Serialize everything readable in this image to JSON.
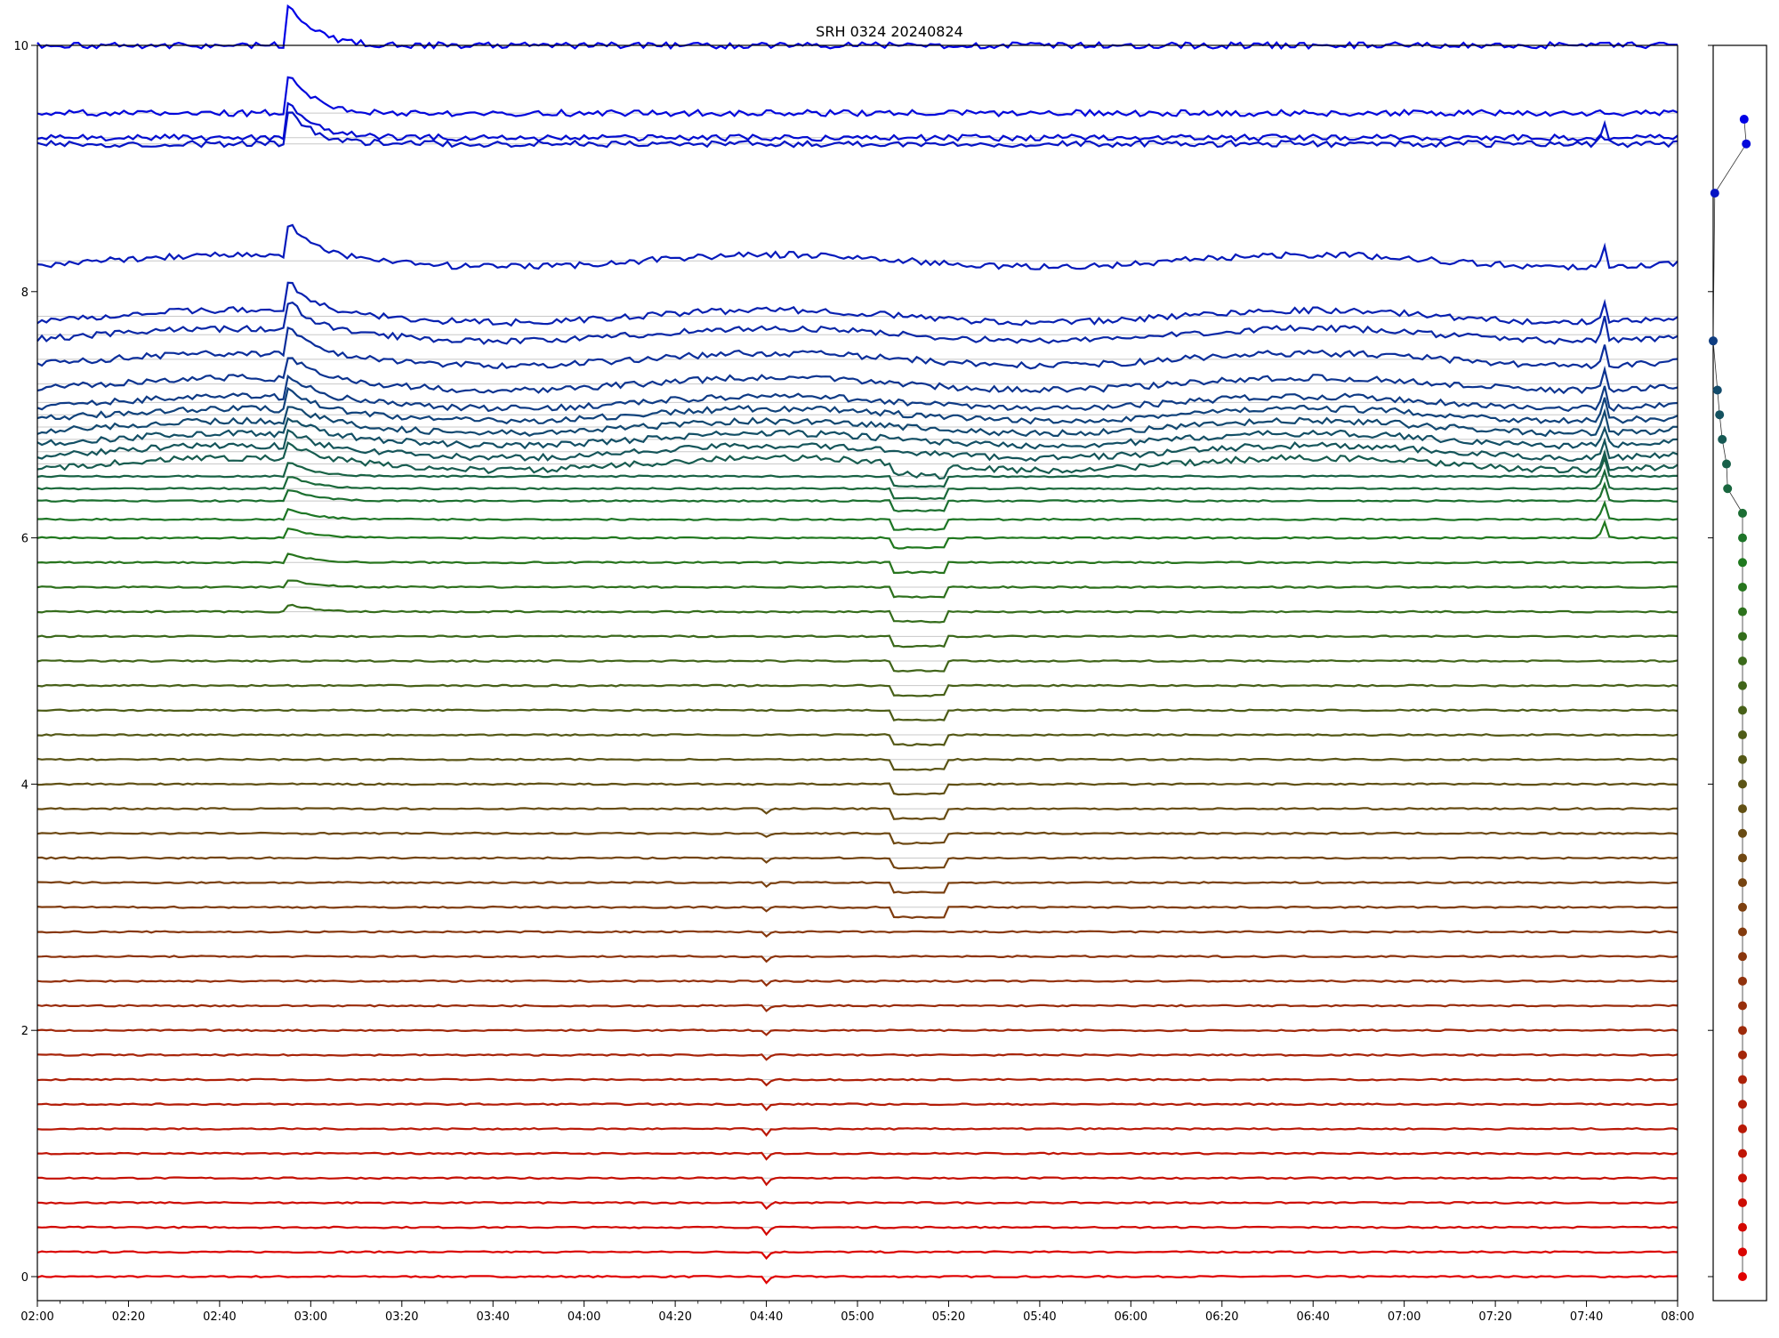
{
  "chart_data": {
    "type": "line",
    "title": "SRH 0324 20240824",
    "xlabel": "",
    "ylabel": "",
    "x_tick_labels": [
      "02:00",
      "02:20",
      "02:40",
      "03:00",
      "03:20",
      "03:40",
      "04:00",
      "04:20",
      "04:40",
      "05:00",
      "05:20",
      "05:40",
      "06:00",
      "06:20",
      "06:40",
      "07:00",
      "07:20",
      "07:40",
      "08:00"
    ],
    "x_range_hours": [
      2,
      8
    ],
    "y_tick_values": [
      0,
      2,
      4,
      6,
      8,
      10
    ],
    "y_tick_labels": [
      "0",
      "2",
      "4",
      "6",
      "8",
      "10"
    ],
    "ylim": [
      -0.2,
      10
    ],
    "grid": "horizontal",
    "legend": "none",
    "n_traces": 50,
    "trace_baselines": [
      0.0,
      0.2,
      0.4,
      0.6,
      0.8,
      1.0,
      1.2,
      1.4,
      1.6,
      1.8,
      2.0,
      2.2,
      2.4,
      2.6,
      2.8,
      3.0,
      3.2,
      3.4,
      3.6,
      3.8,
      4.0,
      4.2,
      4.4,
      4.6,
      4.8,
      5.0,
      5.2,
      5.4,
      5.6,
      5.8,
      6.0,
      6.15,
      6.3,
      6.4,
      6.5,
      6.6,
      6.7,
      6.8,
      6.9,
      7.0,
      7.1,
      7.25,
      7.45,
      7.65,
      7.8,
      8.25,
      9.2,
      9.25,
      9.45,
      10.0
    ],
    "color_low": "#e00000",
    "color_mid": "#1e7a1e",
    "color_high": "#0000e6",
    "events": [
      {
        "name": "flare-1",
        "time_hours": 2.93,
        "peak": 0.9
      },
      {
        "name": "flare-2",
        "time_hours": 7.73,
        "peak": 0.22
      },
      {
        "name": "dip-1",
        "time_hours": 4.67,
        "depth": 0.06
      },
      {
        "name": "drop-1",
        "time_hours": 5.25,
        "depth": 0.08
      }
    ],
    "side_panel": {
      "type": "scatter",
      "points": [
        {
          "y": 0.0,
          "offset": 0.55
        },
        {
          "y": 0.2,
          "offset": 0.55
        },
        {
          "y": 0.4,
          "offset": 0.55
        },
        {
          "y": 0.6,
          "offset": 0.55
        },
        {
          "y": 0.8,
          "offset": 0.55
        },
        {
          "y": 1.0,
          "offset": 0.55
        },
        {
          "y": 1.2,
          "offset": 0.55
        },
        {
          "y": 1.4,
          "offset": 0.55
        },
        {
          "y": 1.6,
          "offset": 0.55
        },
        {
          "y": 1.8,
          "offset": 0.55
        },
        {
          "y": 2.0,
          "offset": 0.55
        },
        {
          "y": 2.2,
          "offset": 0.55
        },
        {
          "y": 2.4,
          "offset": 0.55
        },
        {
          "y": 2.6,
          "offset": 0.55
        },
        {
          "y": 2.8,
          "offset": 0.55
        },
        {
          "y": 3.0,
          "offset": 0.55
        },
        {
          "y": 3.2,
          "offset": 0.55
        },
        {
          "y": 3.4,
          "offset": 0.55
        },
        {
          "y": 3.6,
          "offset": 0.55
        },
        {
          "y": 3.8,
          "offset": 0.55
        },
        {
          "y": 4.0,
          "offset": 0.55
        },
        {
          "y": 4.2,
          "offset": 0.55
        },
        {
          "y": 4.4,
          "offset": 0.55
        },
        {
          "y": 4.6,
          "offset": 0.55
        },
        {
          "y": 4.8,
          "offset": 0.55
        },
        {
          "y": 5.0,
          "offset": 0.55
        },
        {
          "y": 5.2,
          "offset": 0.55
        },
        {
          "y": 5.4,
          "offset": 0.55
        },
        {
          "y": 5.6,
          "offset": 0.55
        },
        {
          "y": 5.8,
          "offset": 0.55
        },
        {
          "y": 6.0,
          "offset": 0.55
        },
        {
          "y": 6.2,
          "offset": 0.55
        },
        {
          "y": 6.4,
          "offset": 0.27
        },
        {
          "y": 6.6,
          "offset": 0.25
        },
        {
          "y": 6.8,
          "offset": 0.17
        },
        {
          "y": 7.0,
          "offset": 0.12
        },
        {
          "y": 7.2,
          "offset": 0.08
        },
        {
          "y": 7.6,
          "offset": 0.0
        },
        {
          "y": 8.8,
          "offset": 0.03
        },
        {
          "y": 9.2,
          "offset": 0.62
        },
        {
          "y": 9.4,
          "offset": 0.58
        }
      ]
    }
  }
}
